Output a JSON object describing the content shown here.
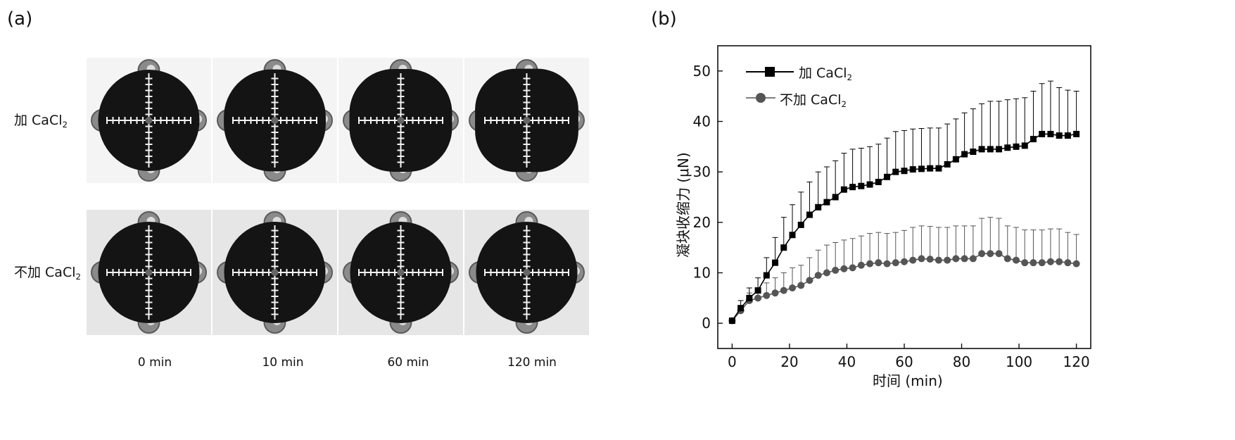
{
  "panel_a": {
    "label": "(a)",
    "rows": [
      {
        "label": "加 CaCl",
        "sub": "2",
        "background": "#f4f4f4",
        "bulge": [
          0,
          0.04,
          0.09,
          0.13
        ]
      },
      {
        "label": "不加 CaCl",
        "sub": "2",
        "background": "#e6e6e6",
        "bulge": [
          0,
          0,
          0,
          0
        ]
      }
    ],
    "times": [
      "0 min",
      "10 min",
      "60 min",
      "120 min"
    ]
  },
  "panel_b": {
    "label": "(b)"
  },
  "chart_data": {
    "type": "line",
    "xlabel": "时间 (min)",
    "ylabel": "凝块收缩力 (μN)",
    "xlim": [
      -5,
      125
    ],
    "ylim": [
      -5,
      55
    ],
    "xticks": [
      0,
      20,
      40,
      60,
      80,
      100,
      120
    ],
    "yticks": [
      0,
      10,
      20,
      30,
      40,
      50
    ],
    "legend_position": "top-left",
    "series": [
      {
        "name": "加 CaCl",
        "name_sub": "2",
        "marker": "square",
        "color": "#000000",
        "x": [
          0,
          3,
          6,
          9,
          12,
          15,
          18,
          21,
          24,
          27,
          30,
          33,
          36,
          39,
          42,
          45,
          48,
          51,
          54,
          57,
          60,
          63,
          66,
          69,
          72,
          75,
          78,
          81,
          84,
          87,
          90,
          93,
          96,
          99,
          102,
          105,
          108,
          111,
          114,
          117,
          120
        ],
        "y": [
          0.5,
          3,
          5,
          6.5,
          9.5,
          12,
          15,
          17.5,
          19.5,
          21.5,
          23,
          24,
          25,
          26.5,
          27,
          27.2,
          27.5,
          28,
          29,
          30,
          30.2,
          30.5,
          30.6,
          30.7,
          30.7,
          31.5,
          32.5,
          33.5,
          34,
          34.5,
          34.5,
          34.5,
          34.8,
          35,
          35.2,
          36.5,
          37.5,
          37.5,
          37.2,
          37.2,
          37.5
        ],
        "err": [
          0.5,
          1.5,
          2,
          2.5,
          3.5,
          5,
          6,
          6,
          6.5,
          6.5,
          7,
          7,
          7.2,
          7.2,
          7.5,
          7.5,
          7.5,
          7.5,
          7.7,
          8,
          8,
          8,
          8,
          8,
          8,
          8,
          8,
          8.2,
          8.5,
          9,
          9.5,
          9.5,
          9.5,
          9.5,
          9.5,
          9.5,
          10,
          10.5,
          9.5,
          9,
          8.5
        ]
      },
      {
        "name": "不加 CaCl",
        "name_sub": "2",
        "marker": "circle",
        "color": "#555555",
        "x": [
          0,
          3,
          6,
          9,
          12,
          15,
          18,
          21,
          24,
          27,
          30,
          33,
          36,
          39,
          42,
          45,
          48,
          51,
          54,
          57,
          60,
          63,
          66,
          69,
          72,
          75,
          78,
          81,
          84,
          87,
          90,
          93,
          96,
          99,
          102,
          105,
          108,
          111,
          114,
          117,
          120
        ],
        "y": [
          0.5,
          2.5,
          4.5,
          5,
          5.5,
          6,
          6.5,
          7,
          7.5,
          8.5,
          9.5,
          10,
          10.5,
          10.8,
          11,
          11.5,
          11.8,
          12,
          11.8,
          12,
          12.2,
          12.5,
          12.8,
          12.7,
          12.5,
          12.5,
          12.8,
          12.8,
          12.8,
          13.8,
          13.8,
          13.8,
          12.8,
          12.5,
          12,
          12,
          12,
          12.2,
          12.2,
          12,
          11.8
        ],
        "err": [
          0.5,
          1,
          1.5,
          2,
          2.5,
          3,
          3.5,
          4,
          4,
          4.5,
          5,
          5.5,
          5.5,
          5.7,
          5.8,
          5.8,
          6,
          6,
          6,
          6,
          6.2,
          6.5,
          6.5,
          6.5,
          6.5,
          6.5,
          6.5,
          6.5,
          6.5,
          7,
          7.2,
          7,
          6.5,
          6.5,
          6.5,
          6.5,
          6.5,
          6.5,
          6.5,
          6,
          5.8
        ]
      }
    ]
  }
}
